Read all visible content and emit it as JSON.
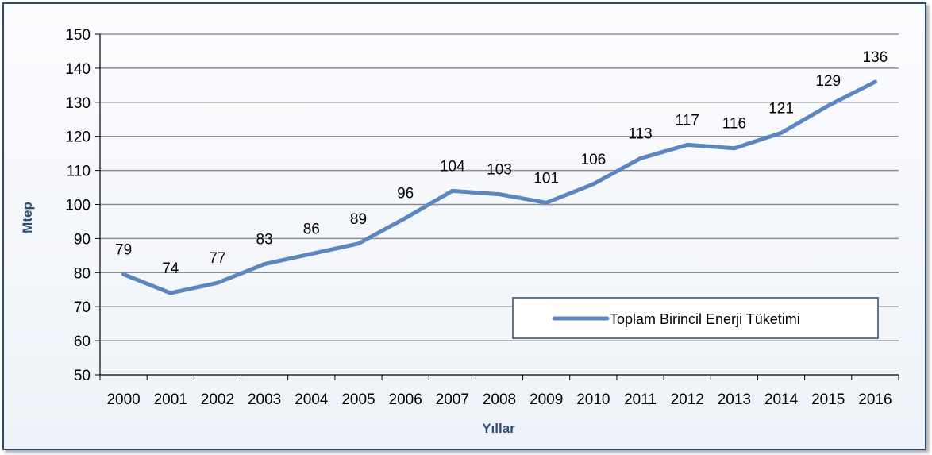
{
  "chart_data": {
    "type": "line",
    "title": "",
    "xlabel": "Yıllar",
    "ylabel": "Mtep",
    "ylim": [
      50,
      150
    ],
    "y_ticks": [
      50,
      60,
      70,
      80,
      90,
      100,
      110,
      120,
      130,
      140,
      150
    ],
    "grid": true,
    "legend_position": "bottom-right",
    "categories": [
      "2000",
      "2001",
      "2002",
      "2003",
      "2004",
      "2005",
      "2006",
      "2007",
      "2008",
      "2009",
      "2010",
      "2011",
      "2012",
      "2013",
      "2014",
      "2015",
      "2016"
    ],
    "series": [
      {
        "name": "Toplam Birincil Enerji Tüketimi",
        "values": [
          79.5,
          74,
          77,
          82.5,
          85.5,
          88.5,
          96,
          104,
          103,
          100.5,
          106,
          113.5,
          117.5,
          116.5,
          121,
          129,
          136
        ],
        "labels": [
          "79",
          "74",
          "77",
          "83",
          "86",
          "89",
          "96",
          "104",
          "103",
          "101",
          "106",
          "113",
          "117",
          "116",
          "121",
          "129",
          "136"
        ],
        "color": "#5b86bf"
      }
    ],
    "colors": {
      "axis_title": "#2e4f7a",
      "gridline": "#8c8c8c",
      "axis": "#000000",
      "frame_border": "#2c4a6e",
      "legend_border": "#2c4a6e"
    }
  }
}
